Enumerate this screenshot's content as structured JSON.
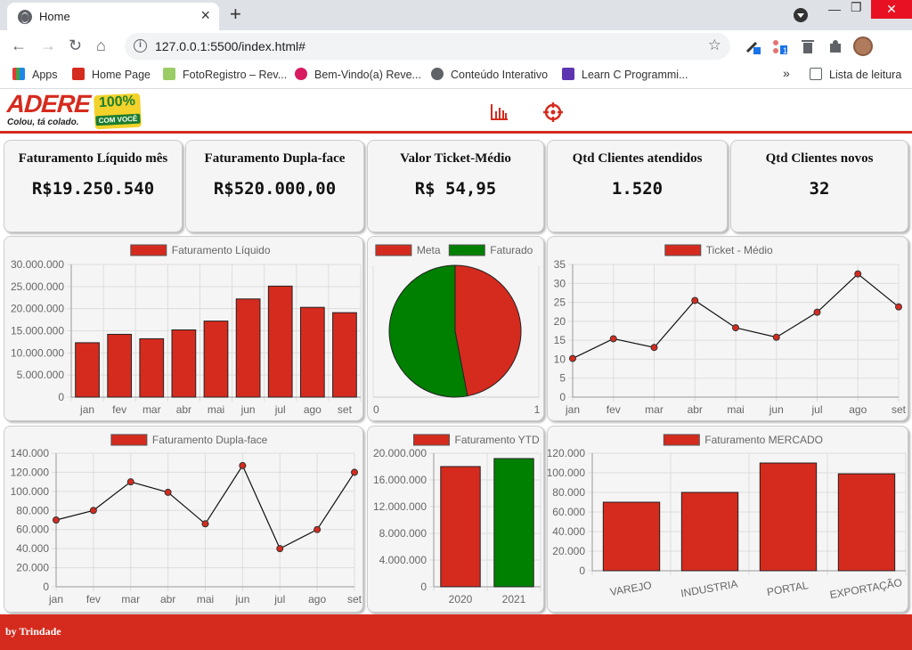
{
  "browser": {
    "tab_title": "Home",
    "url": "127.0.0.1:5500/index.html#",
    "bookmarks": [
      "Apps",
      "Home Page",
      "FotoRegistro – Rev...",
      "Bem-Vindo(a) Reve...",
      "Conteúdo Interativo",
      "Learn C Programmi..."
    ],
    "reading_list": "Lista de leitura"
  },
  "logo": {
    "word": "ADERE",
    "tagline": "Colou, tá colado.",
    "badge_pct": "100%",
    "badge_sub": "COM VOCÊ"
  },
  "kpis": [
    {
      "title": "Faturamento Líquido mês",
      "value": "R$19.250.540"
    },
    {
      "title": "Faturamento Dupla-face",
      "value": "R$520.000,00"
    },
    {
      "title": "Valor Ticket-Médio",
      "value": "R$ 54,95"
    },
    {
      "title": "Qtd Clientes atendidos",
      "value": "1.520"
    },
    {
      "title": "Qtd Clientes novos",
      "value": "32"
    }
  ],
  "colors": {
    "red": "#d52b1e",
    "green": "#008000",
    "footer": "#d52b1e"
  },
  "footer": {
    "text": "by Trindade"
  },
  "chart_data": [
    {
      "id": "fat_liquido",
      "type": "bar",
      "title": "",
      "legend": [
        "Faturamento Líquido"
      ],
      "categories": [
        "jan",
        "fev",
        "mar",
        "abr",
        "mai",
        "jun",
        "jul",
        "ago",
        "set"
      ],
      "values": [
        12300000,
        14200000,
        13200000,
        15200000,
        17200000,
        22200000,
        25100000,
        20300000,
        19100000
      ],
      "ylim": [
        0,
        30000000
      ],
      "yticks": [
        "30.000.000",
        "25.000.000",
        "20.000.000",
        "15.000.000",
        "10.000.000",
        "5.000.000",
        "0"
      ]
    },
    {
      "id": "meta_faturado",
      "type": "pie",
      "legend": [
        "Meta",
        "Faturado"
      ],
      "values": [
        47,
        53
      ],
      "xticks": [
        "0",
        "1"
      ]
    },
    {
      "id": "ticket_medio",
      "type": "line",
      "legend": [
        "Ticket - Médio"
      ],
      "categories": [
        "jan",
        "fev",
        "mar",
        "abr",
        "mai",
        "jun",
        "jul",
        "ago",
        "set"
      ],
      "values": [
        10.2,
        15.4,
        13.1,
        25.5,
        18.3,
        15.8,
        22.4,
        32.5,
        23.8
      ],
      "ylim": [
        0,
        35
      ],
      "yticks": [
        "35",
        "30",
        "25",
        "20",
        "15",
        "10",
        "5",
        "0"
      ]
    },
    {
      "id": "dupla_face",
      "type": "line",
      "legend": [
        "Faturamento Dupla-face"
      ],
      "categories": [
        "jan",
        "fev",
        "mar",
        "abr",
        "mai",
        "jun",
        "jul",
        "ago",
        "set"
      ],
      "values": [
        70000,
        80000,
        110000,
        99000,
        66000,
        127000,
        40000,
        60000,
        120000
      ],
      "ylim": [
        0,
        140000
      ],
      "yticks": [
        "140.000",
        "120.000",
        "100.000",
        "80.000",
        "60.000",
        "40.000",
        "20.000",
        "0"
      ]
    },
    {
      "id": "ytd",
      "type": "bar",
      "legend": [
        "Faturamento YTD"
      ],
      "categories": [
        "2020",
        "2021"
      ],
      "values": [
        18000000,
        19200000
      ],
      "ylim": [
        0,
        20000000
      ],
      "yticks": [
        "20.000.000",
        "16.000.000",
        "12.000.000",
        "8.000.000",
        "4.000.000",
        "0"
      ]
    },
    {
      "id": "mercado",
      "type": "bar",
      "legend": [
        "Faturamento MERCADO"
      ],
      "categories": [
        "VAREJO",
        "INDUSTRIA",
        "PORTAL",
        "EXPORTAÇÃO"
      ],
      "values": [
        70000,
        80000,
        110000,
        99000
      ],
      "ylim": [
        0,
        120000
      ],
      "yticks": [
        "120.000",
        "100.000",
        "80.000",
        "60.000",
        "40.000",
        "20.000",
        "0"
      ]
    }
  ]
}
